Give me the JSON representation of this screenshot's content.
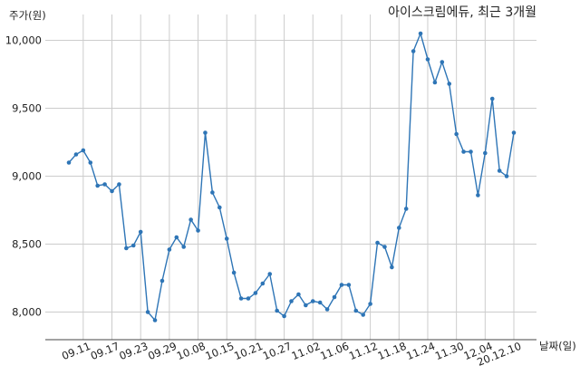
{
  "chart_data": {
    "type": "line",
    "title": "아이스크림에듀, 최근 3개월",
    "ylabel": "주가(원)",
    "xlabel": "날짜(일)",
    "ylim": [
      7830,
      10150
    ],
    "yticks": [
      8000,
      8500,
      9000,
      9500,
      10000
    ],
    "ytick_labels": [
      "8,000",
      "8,500",
      "9,000",
      "9,500",
      "10,000"
    ],
    "xtick_labels": [
      "09.11",
      "09.17",
      "09.23",
      "09.29",
      "10.08",
      "10.15",
      "10.21",
      "10.27",
      "11.02",
      "11.06",
      "11.12",
      "11.18",
      "11.24",
      "11.30",
      "12.04",
      "20.12.10"
    ],
    "xtick_positions": [
      2,
      6,
      10,
      14,
      18,
      22,
      26,
      30,
      34,
      38,
      42,
      46,
      50,
      54,
      58,
      62
    ],
    "grid": true,
    "series": [
      {
        "color": "#2e75b6",
        "values": [
          9100,
          9160,
          9190,
          9100,
          8930,
          8940,
          8890,
          8940,
          8470,
          8490,
          8590,
          8000,
          7940,
          8230,
          8460,
          8550,
          8480,
          8680,
          8600,
          9320,
          8880,
          8770,
          8540,
          8290,
          8100,
          8100,
          8140,
          8210,
          8280,
          8010,
          7970,
          8080,
          8130,
          8050,
          8080,
          8070,
          8020,
          8110,
          8200,
          8200,
          8010,
          7980,
          8060,
          8510,
          8480,
          8330,
          8620,
          8760,
          9920,
          10050,
          9860,
          9690,
          9840,
          9680,
          9310,
          9180,
          9180,
          8860,
          9170,
          9570,
          9040,
          9000,
          9320
        ]
      }
    ]
  }
}
